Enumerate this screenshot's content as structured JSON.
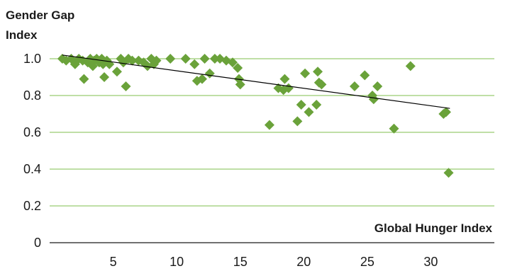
{
  "chart_data": {
    "type": "scatter",
    "ylabel_lines": [
      "Gender Gap",
      "Index"
    ],
    "xlabel": "Global Hunger Index",
    "xlim": [
      0,
      35
    ],
    "ylim": [
      0,
      1.0
    ],
    "xticks": [
      5,
      10,
      15,
      20,
      25,
      30
    ],
    "yticks": [
      0,
      0.2,
      0.4,
      0.6,
      0.8,
      1.0
    ],
    "ytick_labels": [
      "0",
      "0.2",
      "0.4",
      "0.6",
      "0.8",
      "1.0"
    ],
    "grid": "horizontal",
    "marker": "diamond",
    "colors": {
      "marker": "#6aa23a",
      "grid": "#7fbf4d",
      "trend": "#000000",
      "axis": "#1a1a1a"
    },
    "trendline": {
      "type": "linear",
      "x": [
        1.0,
        31.5
      ],
      "y": [
        1.02,
        0.73
      ]
    },
    "points": [
      {
        "x": 1.0,
        "y": 1.0
      },
      {
        "x": 1.3,
        "y": 0.99
      },
      {
        "x": 1.7,
        "y": 1.0
      },
      {
        "x": 2.0,
        "y": 0.97
      },
      {
        "x": 2.3,
        "y": 1.0
      },
      {
        "x": 2.6,
        "y": 0.99
      },
      {
        "x": 2.7,
        "y": 0.89
      },
      {
        "x": 3.0,
        "y": 0.98
      },
      {
        "x": 3.2,
        "y": 1.0
      },
      {
        "x": 3.4,
        "y": 0.96
      },
      {
        "x": 3.5,
        "y": 0.99
      },
      {
        "x": 3.7,
        "y": 1.0
      },
      {
        "x": 3.9,
        "y": 0.98
      },
      {
        "x": 4.1,
        "y": 1.0
      },
      {
        "x": 4.2,
        "y": 0.97
      },
      {
        "x": 4.3,
        "y": 0.9
      },
      {
        "x": 4.5,
        "y": 0.99
      },
      {
        "x": 4.7,
        "y": 0.97
      },
      {
        "x": 5.3,
        "y": 0.93
      },
      {
        "x": 5.6,
        "y": 1.0
      },
      {
        "x": 5.8,
        "y": 0.98
      },
      {
        "x": 6.0,
        "y": 0.85
      },
      {
        "x": 6.2,
        "y": 1.0
      },
      {
        "x": 6.5,
        "y": 0.99
      },
      {
        "x": 7.0,
        "y": 0.99
      },
      {
        "x": 7.4,
        "y": 0.98
      },
      {
        "x": 7.7,
        "y": 0.96
      },
      {
        "x": 8.0,
        "y": 1.0
      },
      {
        "x": 8.2,
        "y": 0.97
      },
      {
        "x": 8.4,
        "y": 0.99
      },
      {
        "x": 9.5,
        "y": 1.0
      },
      {
        "x": 10.7,
        "y": 1.0
      },
      {
        "x": 11.4,
        "y": 0.97
      },
      {
        "x": 11.6,
        "y": 0.88
      },
      {
        "x": 12.0,
        "y": 0.89
      },
      {
        "x": 12.2,
        "y": 1.0
      },
      {
        "x": 12.6,
        "y": 0.92
      },
      {
        "x": 13.0,
        "y": 1.0
      },
      {
        "x": 13.4,
        "y": 1.0
      },
      {
        "x": 13.9,
        "y": 0.99
      },
      {
        "x": 14.4,
        "y": 0.98
      },
      {
        "x": 14.8,
        "y": 0.95
      },
      {
        "x": 14.9,
        "y": 0.89
      },
      {
        "x": 15.0,
        "y": 0.86
      },
      {
        "x": 17.3,
        "y": 0.64
      },
      {
        "x": 18.0,
        "y": 0.84
      },
      {
        "x": 18.4,
        "y": 0.83
      },
      {
        "x": 18.5,
        "y": 0.89
      },
      {
        "x": 18.8,
        "y": 0.84
      },
      {
        "x": 19.5,
        "y": 0.66
      },
      {
        "x": 19.8,
        "y": 0.75
      },
      {
        "x": 20.1,
        "y": 0.92
      },
      {
        "x": 20.4,
        "y": 0.71
      },
      {
        "x": 21.0,
        "y": 0.75
      },
      {
        "x": 21.1,
        "y": 0.93
      },
      {
        "x": 21.2,
        "y": 0.87
      },
      {
        "x": 21.4,
        "y": 0.86
      },
      {
        "x": 24.0,
        "y": 0.85
      },
      {
        "x": 24.8,
        "y": 0.91
      },
      {
        "x": 25.4,
        "y": 0.8
      },
      {
        "x": 25.5,
        "y": 0.78
      },
      {
        "x": 25.8,
        "y": 0.85
      },
      {
        "x": 27.1,
        "y": 0.62
      },
      {
        "x": 28.4,
        "y": 0.96
      },
      {
        "x": 31.0,
        "y": 0.7
      },
      {
        "x": 31.2,
        "y": 0.71
      },
      {
        "x": 31.4,
        "y": 0.38
      }
    ]
  }
}
